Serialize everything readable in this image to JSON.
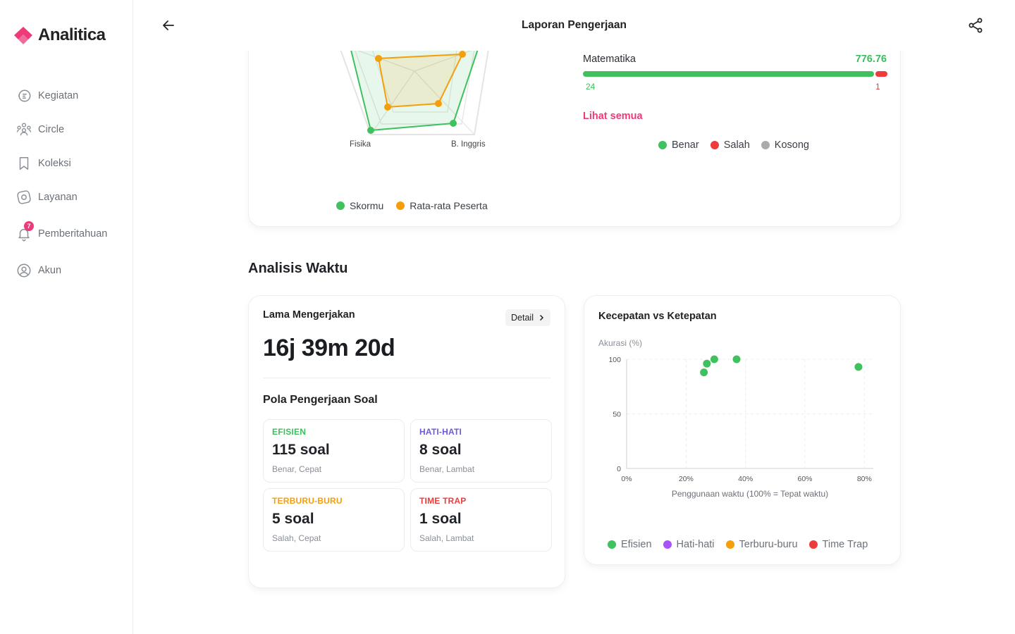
{
  "brand": {
    "name": "Analitica",
    "color": "#ec3a7a"
  },
  "sidebar": {
    "items": [
      {
        "label": "Kegiatan",
        "icon": "activity-icon"
      },
      {
        "label": "Circle",
        "icon": "people-icon"
      },
      {
        "label": "Koleksi",
        "icon": "bookmark-icon"
      },
      {
        "label": "Layanan",
        "icon": "compass-icon"
      },
      {
        "label": "Pemberitahuan",
        "icon": "bell-icon",
        "badge": "7"
      },
      {
        "label": "Akun",
        "icon": "user-icon"
      }
    ]
  },
  "header": {
    "title": "Laporan Pengerjaan"
  },
  "radar": {
    "labels": [
      "Fisika",
      "B. Inggris"
    ],
    "legend": [
      {
        "label": "Skormu",
        "color": "#3ec15e"
      },
      {
        "label": "Rata-rata Peserta",
        "color": "#f59e0b"
      }
    ]
  },
  "subject": {
    "name": "Matematika",
    "score": "776.76",
    "correct": 24,
    "wrong": 1,
    "correct_label": "24",
    "wrong_label": "1",
    "see_all": "Lihat semua",
    "legend": [
      {
        "label": "Benar",
        "color": "#3ec15e"
      },
      {
        "label": "Salah",
        "color": "#ee3b3b"
      },
      {
        "label": "Kosong",
        "color": "#a9abae"
      }
    ]
  },
  "time_analysis": {
    "section_title": "Analisis Waktu",
    "duration_card": {
      "title": "Lama Mengerjakan",
      "detail_label": "Detail",
      "duration": "16j 39m 20d",
      "pattern_title": "Pola Pengerjaan Soal",
      "tiles": [
        {
          "category": "EFISIEN",
          "value": "115 soal",
          "desc": "Benar, Cepat",
          "color": "#3bbf5d"
        },
        {
          "category": "HATI-HATI",
          "value": "8 soal",
          "desc": "Benar, Lambat",
          "color": "#6d5ad6"
        },
        {
          "category": "TERBURU-BURU",
          "value": "5 soal",
          "desc": "Salah, Cepat",
          "color": "#f59e0b"
        },
        {
          "category": "TIME TRAP",
          "value": "1 soal",
          "desc": "Salah, Lambat",
          "color": "#ee3b3b"
        }
      ]
    },
    "scatter_card": {
      "title": "Kecepatan vs Ketepatan",
      "legend": [
        {
          "label": "Efisien",
          "color": "#3ec15e"
        },
        {
          "label": "Hati-hati",
          "color": "#a855f7"
        },
        {
          "label": "Terburu-buru",
          "color": "#f59e0b"
        },
        {
          "label": "Time Trap",
          "color": "#ee3b3b"
        }
      ]
    }
  },
  "chart_data": {
    "type": "scatter",
    "title": "Kecepatan vs Ketepatan",
    "xlabel": "Penggunaan waktu (100% = Tepat waktu)",
    "ylabel": "Akurasi (%)",
    "xlim": [
      0,
      83
    ],
    "ylim": [
      0,
      100
    ],
    "x_ticks": [
      0,
      20,
      40,
      60,
      80
    ],
    "x_tick_labels": [
      "0%",
      "20%",
      "40%",
      "60%",
      "80%"
    ],
    "y_ticks": [
      0,
      50,
      100
    ],
    "y_tick_labels": [
      "0",
      "50",
      "100"
    ],
    "grid": true,
    "legend_position": "bottom",
    "series": [
      {
        "name": "Efisien",
        "color": "#3ec15e",
        "points": [
          {
            "x": 26,
            "y": 88
          },
          {
            "x": 27,
            "y": 96
          },
          {
            "x": 29.5,
            "y": 100
          },
          {
            "x": 37,
            "y": 100
          },
          {
            "x": 78,
            "y": 93
          }
        ]
      },
      {
        "name": "Hati-hati",
        "color": "#a855f7",
        "points": []
      },
      {
        "name": "Terburu-buru",
        "color": "#f59e0b",
        "points": []
      },
      {
        "name": "Time Trap",
        "color": "#ee3b3b",
        "points": []
      }
    ]
  }
}
